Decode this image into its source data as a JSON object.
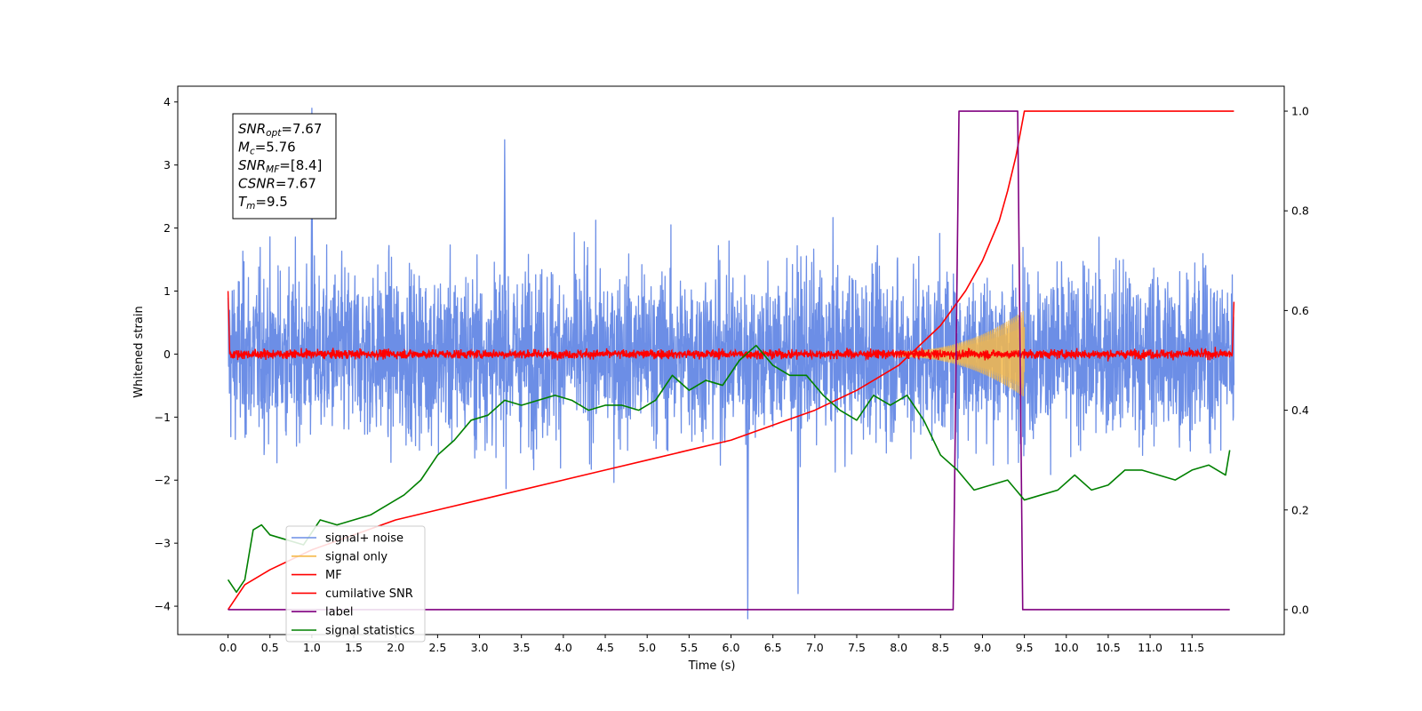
{
  "chart_data": {
    "type": "line",
    "xlabel": "Time (s)",
    "ylabel": "Whitened strain",
    "xlim": [
      -0.6,
      12.6
    ],
    "ylim": [
      -4.45,
      4.25
    ],
    "y2lim": [
      -0.05,
      1.05
    ],
    "x_ticks": [
      "0.0",
      "0.5",
      "1.0",
      "1.5",
      "2.0",
      "2.5",
      "3.0",
      "3.5",
      "4.0",
      "4.5",
      "5.0",
      "5.5",
      "6.0",
      "6.5",
      "7.0",
      "7.5",
      "8.0",
      "8.5",
      "9.0",
      "9.5",
      "10.0",
      "10.5",
      "11.0",
      "11.5"
    ],
    "y_ticks": [
      "4",
      "3",
      "2",
      "1",
      "0",
      "−1",
      "−2",
      "−3",
      "−4"
    ],
    "y2_ticks": [
      "1.0",
      "0.8",
      "0.6",
      "0.4",
      "0.2",
      "0.0"
    ],
    "annotation": {
      "lines": [
        {
          "main": "SNR",
          "sub": "opt",
          "value": "=7.67"
        },
        {
          "main": "M",
          "sub": "c",
          "value": "=5.76"
        },
        {
          "main": "SNR",
          "sub": "MF",
          "value": "=[8.4]"
        },
        {
          "main": "CSNR",
          "sub": "",
          "value": "=7.67"
        },
        {
          "main": "T",
          "sub": "m",
          "value": "=9.5"
        }
      ]
    },
    "legend": {
      "placement": "lower-left",
      "entries": [
        {
          "label": "signal+ noise",
          "color": "#6c8ee6"
        },
        {
          "label": "signal only",
          "color": "#f5b94a"
        },
        {
          "label": "MF",
          "color": "#ff0000"
        },
        {
          "label": "cumilative SNR",
          "color": "#ff0000"
        },
        {
          "label": "label",
          "color": "#800080"
        },
        {
          "label": "signal statistics",
          "color": "#008000"
        }
      ]
    },
    "series": [
      {
        "name": "signal+ noise",
        "axis": "left",
        "color": "#6c8ee6",
        "kind": "noise",
        "x_range": [
          0,
          12
        ],
        "envelope": [
          -2.6,
          2.6
        ],
        "peaks": [
          {
            "x": 1.0,
            "y": 3.9
          },
          {
            "x": 6.2,
            "y": -4.2
          },
          {
            "x": 6.8,
            "y": -3.8
          },
          {
            "x": 3.3,
            "y": 3.4
          }
        ]
      },
      {
        "name": "signal only",
        "axis": "left",
        "color": "#f5b94a",
        "kind": "chirp",
        "x_range": [
          8.0,
          9.5
        ],
        "amplitude_end": 0.65
      },
      {
        "name": "MF",
        "axis": "left",
        "color": "#ff0000",
        "kind": "noise",
        "x_range": [
          0,
          12
        ],
        "envelope": [
          -0.15,
          0.15
        ],
        "end_values": [
          1.0,
          0.83
        ]
      },
      {
        "name": "cumilative SNR",
        "axis": "right",
        "color": "#ff0000",
        "x": [
          0.0,
          0.2,
          0.5,
          1.0,
          1.5,
          2.0,
          2.5,
          3.0,
          3.5,
          4.0,
          4.5,
          5.0,
          5.5,
          6.0,
          6.5,
          7.0,
          7.5,
          8.0,
          8.5,
          8.8,
          9.0,
          9.2,
          9.3,
          9.4,
          9.5,
          12.0
        ],
        "values": [
          0.0,
          0.05,
          0.08,
          0.12,
          0.15,
          0.18,
          0.2,
          0.22,
          0.24,
          0.26,
          0.28,
          0.3,
          0.32,
          0.34,
          0.37,
          0.4,
          0.44,
          0.49,
          0.57,
          0.64,
          0.7,
          0.78,
          0.84,
          0.91,
          1.0,
          1.0
        ]
      },
      {
        "name": "label",
        "axis": "right",
        "color": "#800080",
        "x": [
          0.0,
          8.65,
          8.72,
          9.42,
          9.48,
          11.95
        ],
        "values": [
          0.0,
          0.0,
          1.0,
          1.0,
          0.0,
          0.0
        ]
      },
      {
        "name": "signal statistics",
        "axis": "right",
        "color": "#008000",
        "x": [
          0.0,
          0.1,
          0.2,
          0.3,
          0.4,
          0.5,
          0.7,
          0.9,
          1.1,
          1.3,
          1.5,
          1.7,
          1.9,
          2.1,
          2.3,
          2.5,
          2.7,
          2.9,
          3.1,
          3.3,
          3.5,
          3.7,
          3.9,
          4.1,
          4.3,
          4.5,
          4.7,
          4.9,
          5.1,
          5.3,
          5.5,
          5.7,
          5.9,
          6.1,
          6.3,
          6.5,
          6.7,
          6.9,
          7.1,
          7.3,
          7.5,
          7.7,
          7.9,
          8.1,
          8.3,
          8.5,
          8.7,
          8.9,
          9.1,
          9.3,
          9.5,
          9.7,
          9.9,
          10.1,
          10.3,
          10.5,
          10.7,
          10.9,
          11.1,
          11.3,
          11.5,
          11.7,
          11.9,
          11.95
        ],
        "values": [
          0.06,
          0.035,
          0.06,
          0.16,
          0.17,
          0.15,
          0.14,
          0.13,
          0.18,
          0.17,
          0.18,
          0.19,
          0.21,
          0.23,
          0.26,
          0.31,
          0.34,
          0.38,
          0.39,
          0.42,
          0.41,
          0.42,
          0.43,
          0.42,
          0.4,
          0.41,
          0.41,
          0.4,
          0.42,
          0.47,
          0.44,
          0.46,
          0.45,
          0.5,
          0.53,
          0.49,
          0.47,
          0.47,
          0.43,
          0.4,
          0.38,
          0.43,
          0.41,
          0.43,
          0.38,
          0.31,
          0.28,
          0.24,
          0.25,
          0.26,
          0.22,
          0.23,
          0.24,
          0.27,
          0.24,
          0.25,
          0.28,
          0.28,
          0.27,
          0.26,
          0.28,
          0.29,
          0.27,
          0.32
        ]
      }
    ]
  }
}
